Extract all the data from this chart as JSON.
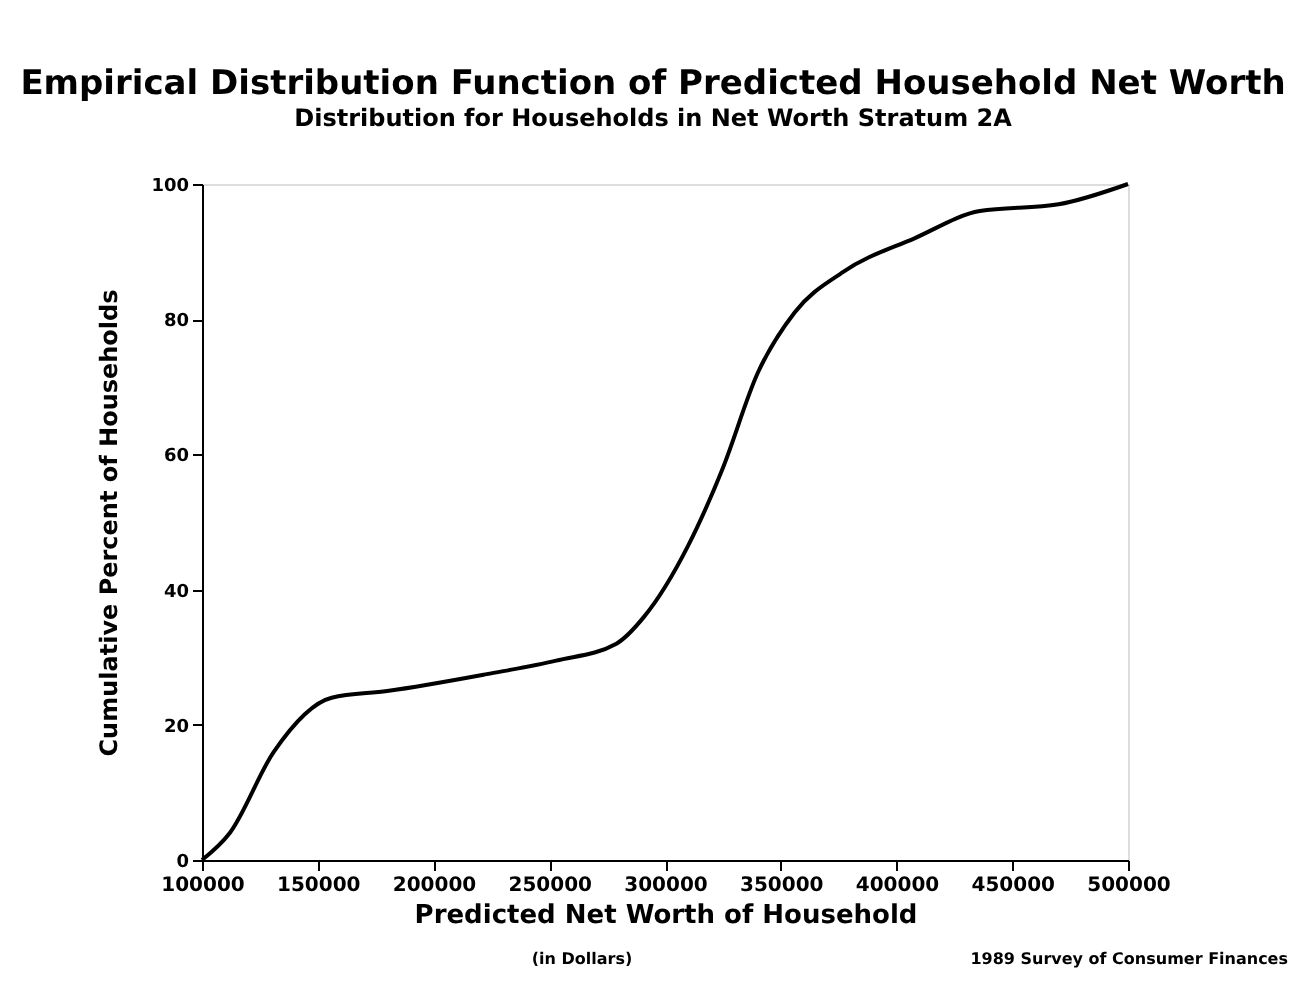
{
  "chart_data": {
    "type": "line",
    "title": "Empirical Distribution Function of Predicted Household Net Worth",
    "subtitle": "Distribution for Households in Net Worth Stratum 2A",
    "xlabel": "Predicted Net Worth of Household",
    "ylabel": "Cumulative Percent of Households",
    "annotations": [
      "(in Dollars)",
      "1989 Survey of Consumer Finances"
    ],
    "x": [
      100000,
      112000,
      131000,
      156000,
      180000,
      223000,
      253000,
      279000,
      291000,
      310000,
      325000,
      340000,
      356000,
      377000,
      408000,
      436000,
      470000,
      500000
    ],
    "series": [
      {
        "color": "#000000",
        "values": [
          0,
          4,
          16,
          24,
          25,
          27.5,
          29.5,
          32,
          36,
          46.5,
          58,
          72,
          81,
          87,
          92,
          96,
          97,
          100
        ]
      }
    ],
    "xlim": [
      100000,
      500000
    ],
    "xticks": [
      100000,
      150000,
      200000,
      250000,
      300000,
      350000,
      400000,
      450000,
      500000
    ],
    "ylim": [
      0,
      100
    ],
    "yticks": [
      0,
      20,
      40,
      60,
      80,
      100
    ],
    "grid": false,
    "line_style": "solid"
  }
}
